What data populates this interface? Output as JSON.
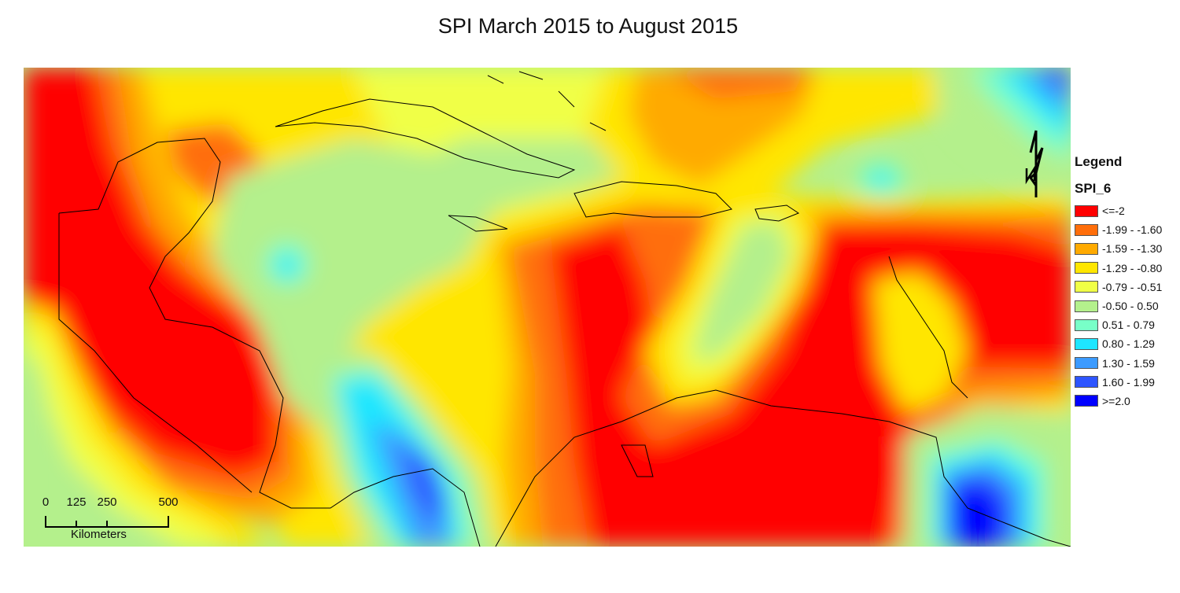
{
  "map": {
    "title": "SPI March 2015 to August 2015",
    "colors": {
      "c1": "#ff0000",
      "c2": "#ff6e0a",
      "c3": "#ffaa00",
      "c4": "#ffe600",
      "c5": "#f0ff46",
      "c6": "#b4f08c",
      "c7": "#78ffc8",
      "c8": "#1ee6ff",
      "c9": "#3c9bff",
      "c10": "#2e55ff",
      "c11": "#0000ff"
    }
  },
  "legend": {
    "title": "Legend",
    "layer": "SPI_6",
    "items": [
      {
        "label": "<=-2",
        "color": "#ff0000"
      },
      {
        "label": "-1.99 - -1.60",
        "color": "#ff6e0a"
      },
      {
        "label": "-1.59 - -1.30",
        "color": "#ffaa00"
      },
      {
        "label": "-1.29 - -0.80",
        "color": "#ffe600"
      },
      {
        "label": "-0.79 - -0.51",
        "color": "#f0ff46"
      },
      {
        "label": "-0.50 - 0.50",
        "color": "#b4f08c"
      },
      {
        "label": "0.51 - 0.79",
        "color": "#78ffc8"
      },
      {
        "label": "0.80 - 1.29",
        "color": "#1ee6ff"
      },
      {
        "label": "1.30 - 1.59",
        "color": "#3c9bff"
      },
      {
        "label": "1.60 - 1.99",
        "color": "#2e55ff"
      },
      {
        "label": ">=2.0",
        "color": "#0000ff"
      }
    ]
  },
  "scale_bar": {
    "ticks": [
      "0",
      "125",
      "250",
      "500"
    ],
    "unit": "Kilometers"
  },
  "north_arrow": {
    "label": "N"
  }
}
